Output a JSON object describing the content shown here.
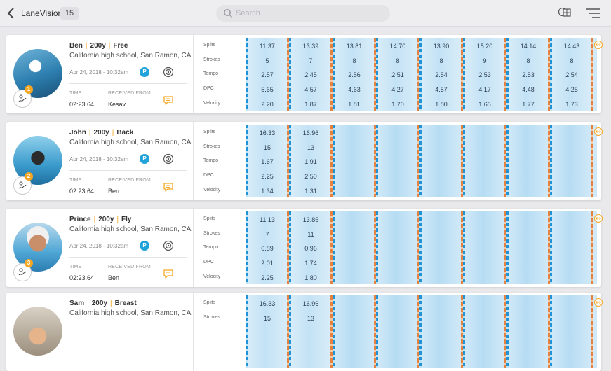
{
  "app": {
    "title": "LaneVision",
    "count": "15"
  },
  "search": {
    "placeholder": "Search"
  },
  "labels": {
    "time": "TIME",
    "received_from": "RECEIVED FROM",
    "metrics": [
      "Splits",
      "Strokes",
      "Tempo",
      "DPC",
      "Velocity"
    ],
    "p_badge": "P"
  },
  "swimmers": [
    {
      "name": "Ben",
      "distance": "200y",
      "stroke": "Free",
      "school": "California high school, San Ramon, CA",
      "date": "Apr 24, 2018 - 10:32am",
      "time": "02:23.64",
      "received_from": "Kesav",
      "rank": "1",
      "splits": [
        "11.37",
        "13.39",
        "13.81",
        "14.70",
        "13.90",
        "15.20",
        "14.14",
        "14.43"
      ],
      "strokes": [
        "5",
        "7",
        "8",
        "8",
        "8",
        "9",
        "8",
        "8"
      ],
      "tempo": [
        "2.57",
        "2.45",
        "2.56",
        "2.51",
        "2.54",
        "2.53",
        "2.53",
        "2.54"
      ],
      "dpc": [
        "5.65",
        "4.57",
        "4.63",
        "4.27",
        "4.57",
        "4.17",
        "4.48",
        "4.25"
      ],
      "velocity": [
        "2.20",
        "1.87",
        "1.81",
        "1.70",
        "1.80",
        "1.65",
        "1.77",
        "1.73"
      ]
    },
    {
      "name": "John",
      "distance": "200y",
      "stroke": "Back",
      "school": "California high school, San Ramon, CA",
      "date": "Apr 24, 2018 - 10:32am",
      "time": "02:23.64",
      "received_from": "Ben",
      "rank": "2",
      "splits": [
        "16.33",
        "16.96"
      ],
      "strokes": [
        "15",
        "13"
      ],
      "tempo": [
        "1.67",
        "1.91"
      ],
      "dpc": [
        "2.25",
        "2.50"
      ],
      "velocity": [
        "1.34",
        "1.31"
      ]
    },
    {
      "name": "Prince",
      "distance": "200y",
      "stroke": "Fly",
      "school": "California high school, San Ramon, CA",
      "date": "Apr 24, 2018 - 10:32am",
      "time": "02:23.64",
      "received_from": "Ben",
      "rank": "3",
      "splits": [
        "11.13",
        "13.85"
      ],
      "strokes": [
        "7",
        "11"
      ],
      "tempo": [
        "0.89",
        "0.96"
      ],
      "dpc": [
        "2.01",
        "1.74"
      ],
      "velocity": [
        "2.25",
        "1.80"
      ]
    },
    {
      "name": "Sam",
      "distance": "200y",
      "stroke": "Breast",
      "school": "California high school, San Ramon, CA",
      "splits": [
        "16.33",
        "16.96"
      ],
      "strokes": [
        "15",
        "13"
      ]
    }
  ],
  "colors": {
    "accent_orange": "#f5a623",
    "badge_blue": "#1fa3d9",
    "lane_rope_blue": "#1f93d6",
    "lane_rope_orange": "#e5823f",
    "pool_water": "#c5e4f6"
  },
  "icons": [
    "back-arrow-icon",
    "search-icon",
    "map-layers-icon",
    "menu-icon",
    "target-icon",
    "chat-bubble-icon",
    "swimmer-stroke-icon",
    "expand-arrows-icon"
  ]
}
